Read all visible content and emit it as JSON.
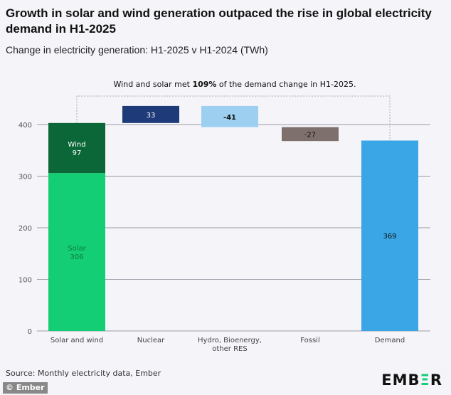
{
  "chart_data": {
    "type": "waterfall",
    "title": "Growth in solar and wind generation outpaced the rise in global electricity demand in H1-2025",
    "subtitle": "Change in electricity generation: H1-2025 v H1-2024 (TWh)",
    "annotation_parts": [
      "Wind and solar met ",
      "109%",
      " of the demand change in H1-2025."
    ],
    "ylim": [
      0,
      450
    ],
    "yticks": [
      0,
      100,
      200,
      300,
      400
    ],
    "grid": true,
    "categories": [
      "Solar and wind",
      "Nuclear",
      "Hydro, Bioenergy, other RES",
      "Fossil",
      "Demand"
    ],
    "category_lines": [
      [
        "Solar and wind"
      ],
      [
        "Nuclear"
      ],
      [
        "Hydro, Bioenergy,",
        "other RES"
      ],
      [
        "Fossil"
      ],
      [
        "Demand"
      ]
    ],
    "bars": [
      {
        "category": "Solar and wind",
        "label": "Solar",
        "value": 306,
        "start": 0,
        "end": 306,
        "color": "#13ce74",
        "text_color": "#0f7a45"
      },
      {
        "category": "Solar and wind",
        "label": "Wind",
        "value": 97,
        "start": 306,
        "end": 403,
        "color": "#0b6638",
        "text_color": "#ffffff"
      },
      {
        "category": "Nuclear",
        "label": "",
        "value": 33,
        "start": 403,
        "end": 436,
        "color": "#1e3a78",
        "text_color": "#ffffff"
      },
      {
        "category": "Hydro, Bioenergy, other RES",
        "label": "",
        "value": -41,
        "start": 436,
        "end": 395,
        "color": "#9ccff0",
        "text_color": "#111111"
      },
      {
        "category": "Fossil",
        "label": "",
        "value": -27,
        "start": 395,
        "end": 368,
        "color": "#7e716d",
        "text_color": "#111111"
      },
      {
        "category": "Demand",
        "label": "",
        "value": 369,
        "start": 0,
        "end": 369,
        "color": "#3aa6e6",
        "text_color": "#111111"
      }
    ]
  },
  "footer": {
    "source": "Source: Monthly electricity data, Ember",
    "logo": "EMBER",
    "copyright": "© Ember"
  }
}
